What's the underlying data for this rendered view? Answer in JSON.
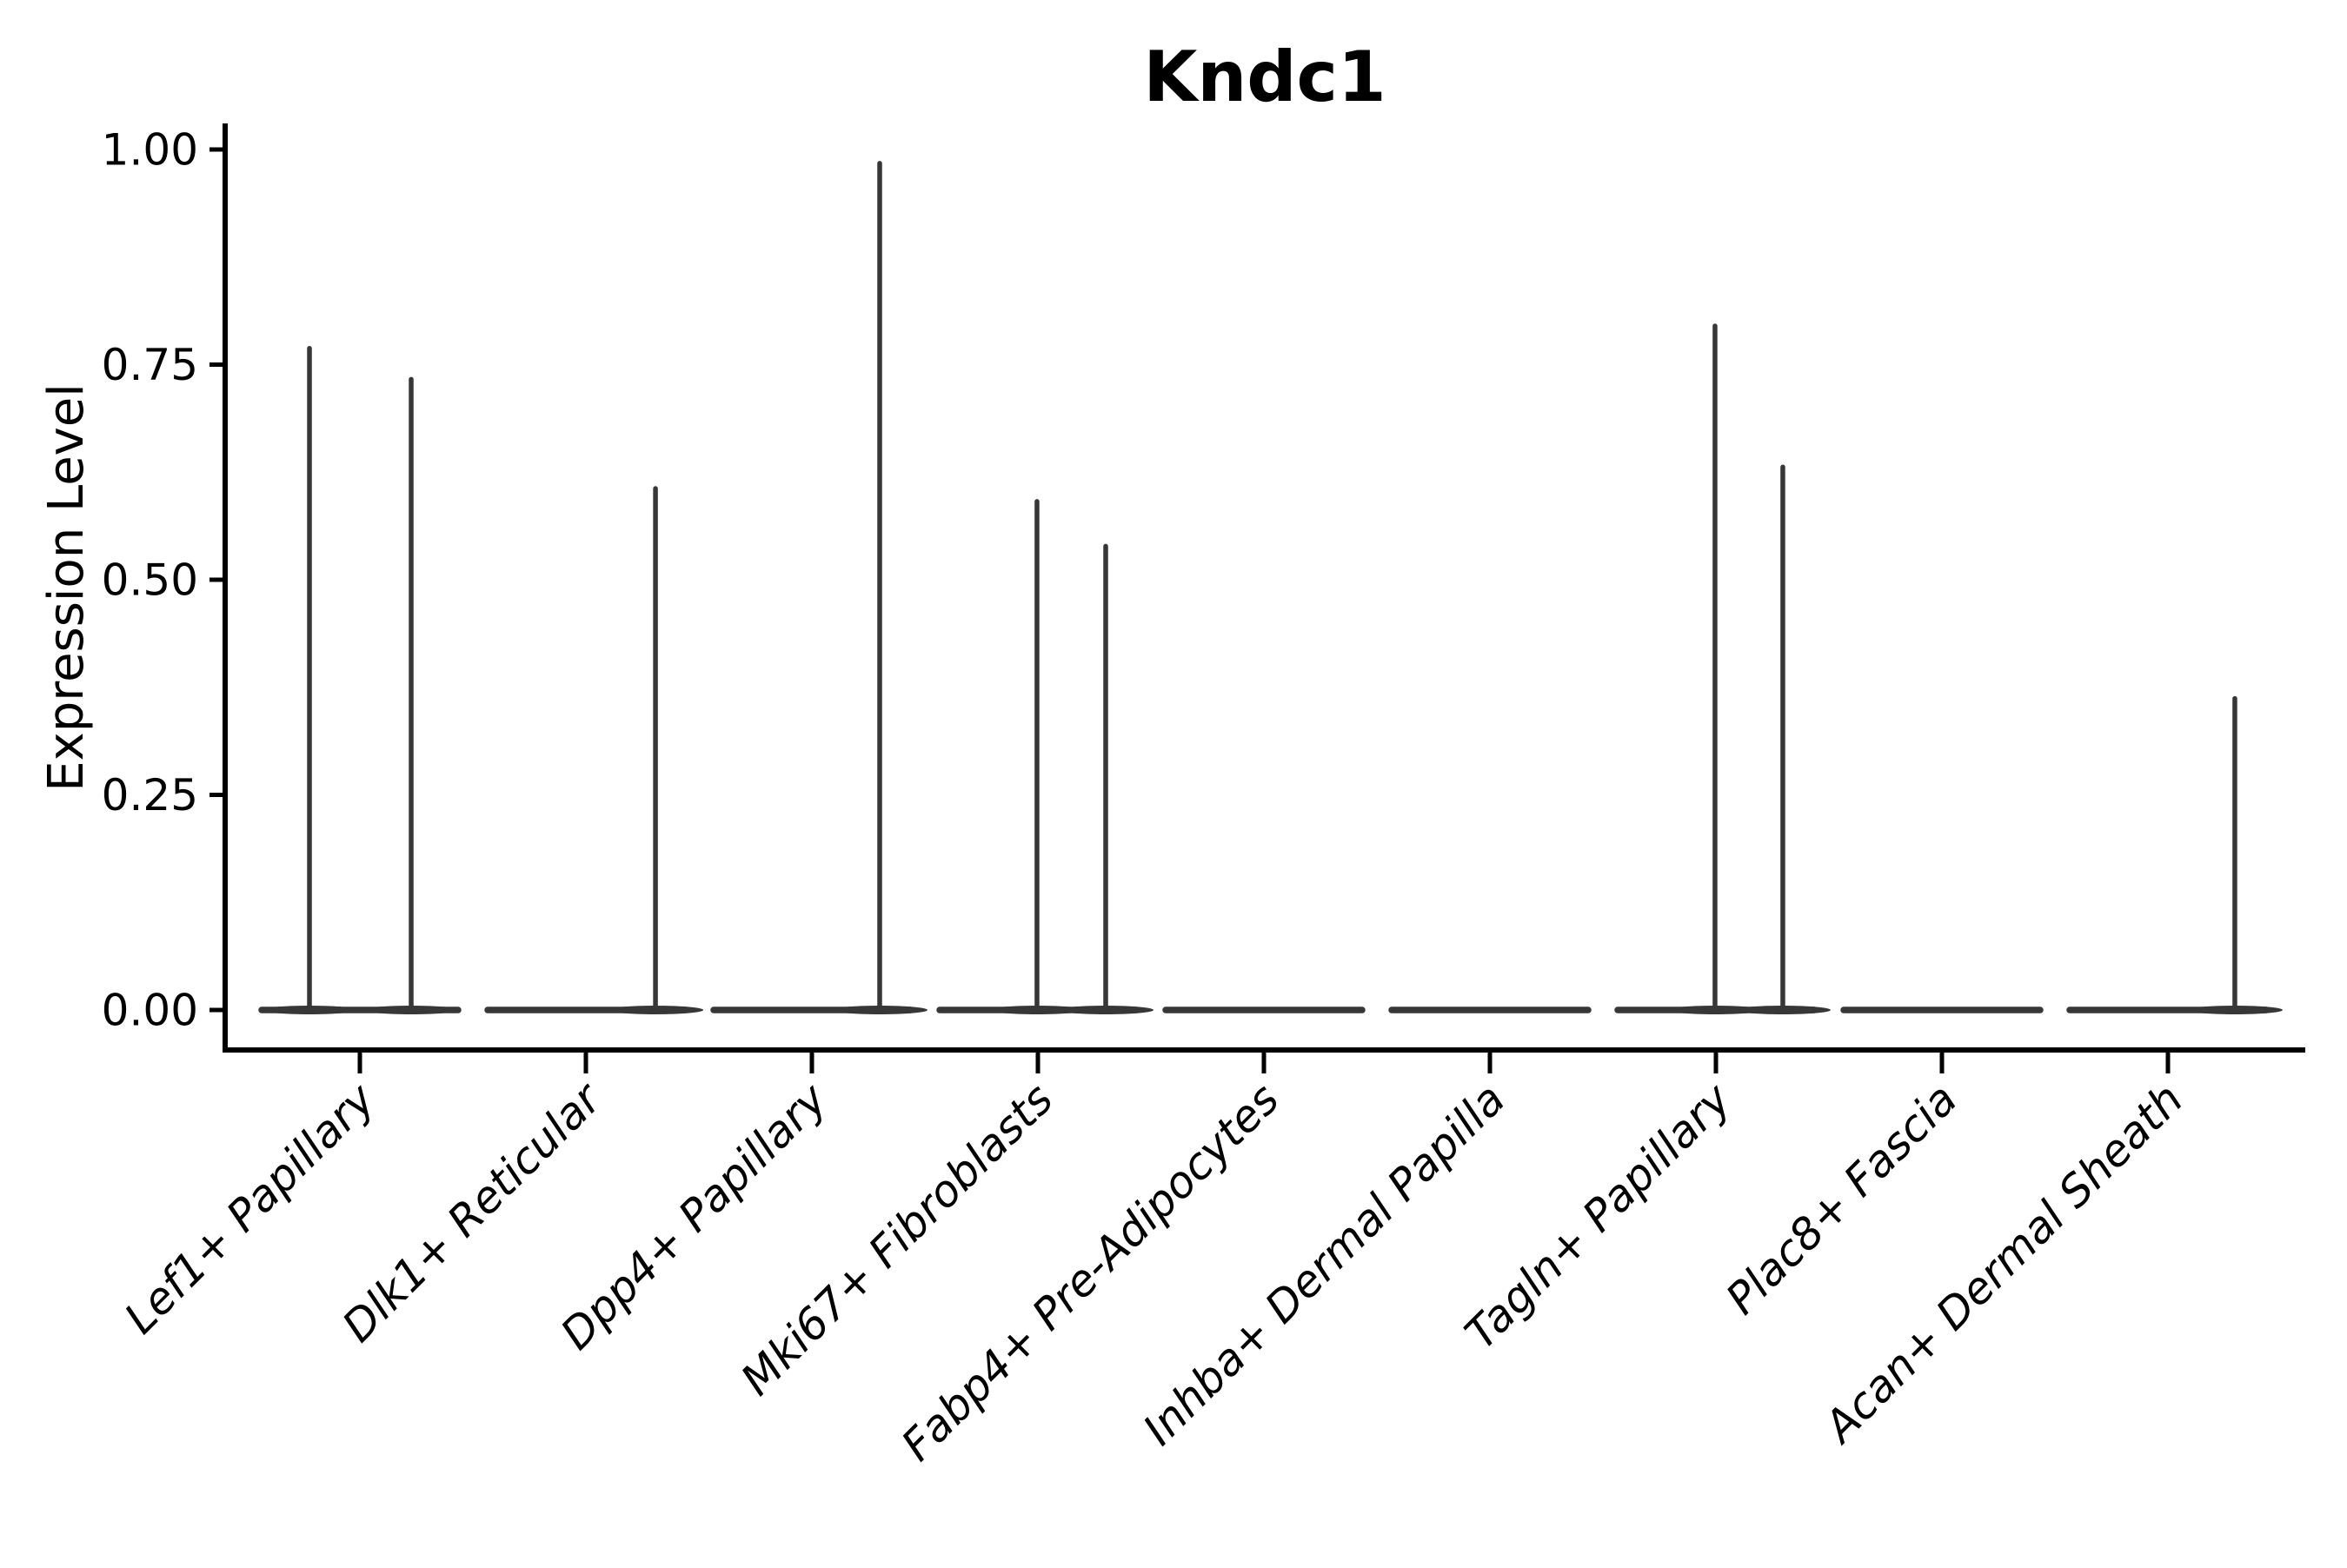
{
  "chart_data": {
    "type": "violin",
    "title": "Kndc1",
    "ylabel": "Expression Level",
    "xlabel": "",
    "ylim": [
      0,
      1.0
    ],
    "grid": false,
    "legend": null,
    "yticks": [
      {
        "value": 0.0,
        "label": "0.00"
      },
      {
        "value": 0.25,
        "label": "0.25"
      },
      {
        "value": 0.5,
        "label": "0.50"
      },
      {
        "value": 0.75,
        "label": "0.75"
      },
      {
        "value": 1.0,
        "label": "1.00"
      }
    ],
    "categories": [
      "Lef1+ Papillary",
      "Dlk1+ Reticular",
      "Dpp4+ Papillary",
      "Mki67+ Fibroblasts",
      "Fabp4+ Pre-Adipocytes",
      "Inhba+ Dermal Papilla",
      "Tagln+ Papillary",
      "Plac8+ Fascia",
      "Acan+ Dermal Sheath"
    ],
    "violins": [
      {
        "body_min": 0,
        "body_max": 0,
        "spikes": [
          {
            "offset": -0.223,
            "value": 0.769
          },
          {
            "offset": 0.227,
            "value": 0.733
          }
        ]
      },
      {
        "body_min": 0,
        "body_max": 0,
        "spikes": [
          {
            "offset": 0.308,
            "value": 0.606
          }
        ]
      },
      {
        "body_min": 0,
        "body_max": 0,
        "spikes": [
          {
            "offset": 0.3,
            "value": 0.984
          }
        ]
      },
      {
        "body_min": 0,
        "body_max": 0,
        "spikes": [
          {
            "offset": -0.004,
            "value": 0.591
          },
          {
            "offset": 0.3,
            "value": 0.539
          }
        ]
      },
      {
        "body_min": 0,
        "body_max": 0,
        "spikes": []
      },
      {
        "body_min": 0,
        "body_max": 0,
        "spikes": []
      },
      {
        "body_min": 0,
        "body_max": 0,
        "spikes": [
          {
            "offset": -0.004,
            "value": 0.795
          },
          {
            "offset": 0.296,
            "value": 0.631
          }
        ]
      },
      {
        "body_min": 0,
        "body_max": 0,
        "spikes": []
      },
      {
        "body_min": 0,
        "body_max": 0,
        "spikes": [
          {
            "offset": 0.296,
            "value": 0.362
          }
        ]
      }
    ],
    "colors": {
      "violin": "#373737",
      "axis": "#000000",
      "text": "#000000",
      "background": "#ffffff"
    }
  }
}
